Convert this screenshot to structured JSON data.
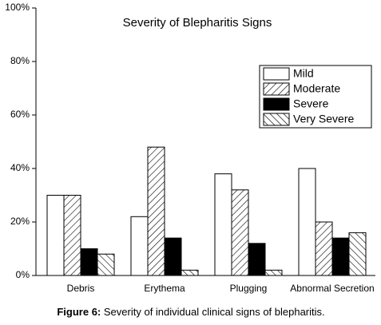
{
  "chart_data": {
    "type": "bar",
    "title": "Severity of Blepharitis Signs",
    "categories": [
      "Debris",
      "Erythema",
      "Plugging",
      "Abnormal Secretion"
    ],
    "series": [
      {
        "name": "Mild",
        "color": "#ffffff",
        "hatch": "none",
        "values": [
          30,
          22,
          38,
          40
        ]
      },
      {
        "name": "Moderate",
        "color": "#ffffff",
        "hatch": "backward",
        "values": [
          30,
          48,
          32,
          20
        ]
      },
      {
        "name": "Severe",
        "color": "#000000",
        "hatch": "none",
        "values": [
          10,
          14,
          12,
          14
        ]
      },
      {
        "name": "Very Severe",
        "color": "#ffffff",
        "hatch": "forward",
        "values": [
          8,
          2,
          2,
          16
        ]
      }
    ],
    "ylim": [
      0,
      100
    ],
    "yticks": [
      {
        "value": 0,
        "label": "0%"
      },
      {
        "value": 20,
        "label": "20%"
      },
      {
        "value": 40,
        "label": "40%"
      },
      {
        "value": 60,
        "label": "60%"
      },
      {
        "value": 80,
        "label": "80%"
      },
      {
        "value": 100,
        "label": "100%"
      }
    ],
    "grid": false,
    "legend": "upper right"
  },
  "caption": {
    "label": "Figure 6:",
    "text": "Severity of individual clinical signs of blepharitis."
  }
}
